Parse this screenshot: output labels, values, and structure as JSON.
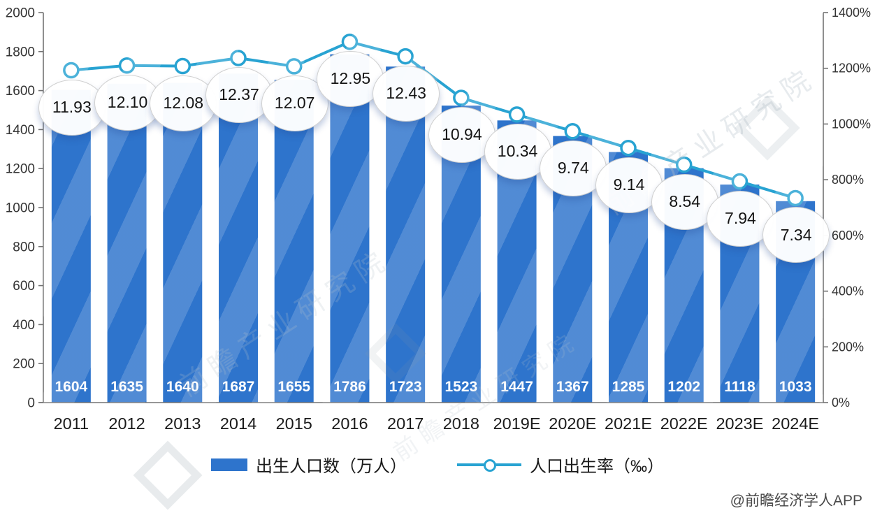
{
  "chart_data": {
    "type": "bar",
    "combo": [
      "bar",
      "line"
    ],
    "title": "",
    "categories": [
      "2011",
      "2012",
      "2013",
      "2014",
      "2015",
      "2016",
      "2017",
      "2018",
      "2019E",
      "2020E",
      "2021E",
      "2022E",
      "2023E",
      "2024E"
    ],
    "series": [
      {
        "name": "出生人口数（万人）",
        "type": "bar",
        "axis": "left",
        "color": "#2e74cc",
        "values": [
          1604,
          1635,
          1640,
          1687,
          1655,
          1786,
          1723,
          1523,
          1447,
          1367,
          1285,
          1202,
          1118,
          1033
        ],
        "labels": [
          "1604",
          "1635",
          "1640",
          "1687",
          "1655",
          "1786",
          "1723",
          "1523",
          "1447",
          "1367",
          "1285",
          "1202",
          "1118",
          "1033"
        ]
      },
      {
        "name": "人口出生率（‰）",
        "type": "line",
        "axis": "right",
        "color": "#28a3d2",
        "values": [
          11.93,
          12.1,
          12.08,
          12.37,
          12.07,
          12.95,
          12.43,
          10.94,
          10.34,
          9.74,
          9.14,
          8.54,
          7.94,
          7.34
        ],
        "labels": [
          "11.93",
          "12.10",
          "12.08",
          "12.37",
          "12.07",
          "12.95",
          "12.43",
          "10.94",
          "10.34",
          "9.74",
          "9.14",
          "8.54",
          "7.94",
          "7.34"
        ]
      }
    ],
    "left_axis": {
      "min": 0,
      "max": 2000,
      "step": 200,
      "tick_labels": [
        "2000",
        "1800",
        "1600",
        "1400",
        "1200",
        "1000",
        "800",
        "600",
        "400",
        "200",
        "0"
      ]
    },
    "right_axis": {
      "min": 0,
      "max": 1400,
      "step": 200,
      "tick_labels": [
        "1400%",
        "1200%",
        "1000%",
        "800%",
        "600%",
        "400%",
        "200%",
        "0%"
      ]
    },
    "grid": false,
    "legend_position": "bottom"
  },
  "watermark": {
    "text": "前瞻产业研究院"
  },
  "attribution": "@前瞻经济学人APP",
  "colors": {
    "bar": "#2e74cc",
    "line": "#28a3d2",
    "bar_label_text": "#ffffff",
    "axis_line": "#737373",
    "axis_text": "#333333",
    "x_label_text": "#1a1a1a",
    "bubble_border": "#cfcfcf"
  }
}
